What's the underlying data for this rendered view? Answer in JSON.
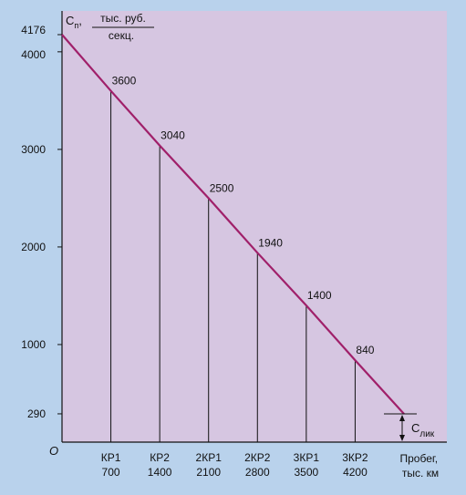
{
  "chart_data": {
    "type": "line",
    "origin_label": "O",
    "ylabel": {
      "symbol": "C",
      "subscript": "п",
      "separator": ",",
      "unit_num": "тыс. руб.",
      "unit_den": "секц."
    },
    "xlabel": [
      "Пробег,",
      "тыс. км"
    ],
    "y_ticks": [
      4176,
      4000,
      3000,
      2000,
      1000,
      290
    ],
    "xlim": [
      0,
      4900
    ],
    "ylim": [
      0,
      4176
    ],
    "series": [
      {
        "color": "#a0206a",
        "points": [
          {
            "x": 0,
            "y": 4176
          },
          {
            "x": 700,
            "y": 3600
          },
          {
            "x": 1400,
            "y": 3040
          },
          {
            "x": 2100,
            "y": 2500
          },
          {
            "x": 2800,
            "y": 1940
          },
          {
            "x": 3500,
            "y": 1400
          },
          {
            "x": 4200,
            "y": 840
          },
          {
            "x": 4900,
            "y": 290
          }
        ]
      }
    ],
    "markers": [
      {
        "label": "КР1",
        "x": 700,
        "value": 3600
      },
      {
        "label": "КР2",
        "x": 1400,
        "value": 3040
      },
      {
        "label": "2КР1",
        "x": 2100,
        "value": 2500
      },
      {
        "label": "2КР2",
        "x": 2800,
        "value": 1940
      },
      {
        "label": "3КР1",
        "x": 3500,
        "value": 1400
      },
      {
        "label": "3КР2",
        "x": 4200,
        "value": 840
      }
    ],
    "residual": {
      "symbol": "C",
      "subscript": "лик",
      "value": 290
    },
    "colors": {
      "page_background": "#b9d2ec",
      "plot_background": "#d6c6e1",
      "line": "#a0206a",
      "axis": "#111111"
    }
  }
}
